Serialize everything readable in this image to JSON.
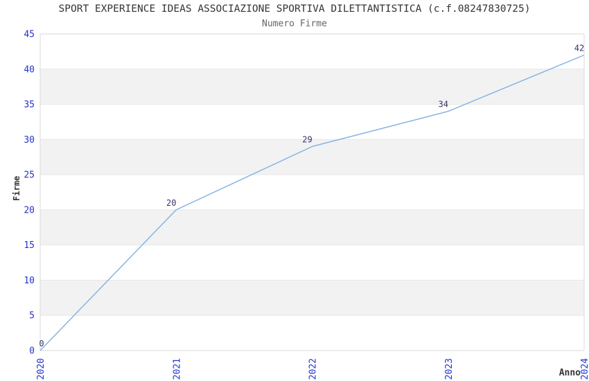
{
  "chart_data": {
    "type": "line",
    "title": "SPORT EXPERIENCE IDEAS ASSOCIAZIONE SPORTIVA DILETTANTISTICA (c.f.08247830725)",
    "subtitle": "Numero Firme",
    "xlabel": "Anno",
    "ylabel": "Firme",
    "categories": [
      "2020",
      "2021",
      "2022",
      "2023",
      "2024"
    ],
    "values": [
      0,
      20,
      29,
      34,
      42
    ],
    "point_labels": [
      "0",
      "20",
      "29",
      "34",
      "42"
    ],
    "ylim": [
      0,
      45
    ],
    "yticks": [
      0,
      5,
      10,
      15,
      20,
      25,
      30,
      35,
      40,
      45
    ],
    "grid": "horizontal alternating bands every 5 units",
    "legend": "none",
    "colors": {
      "line": "#7fb0e3",
      "tick_label": "#2233cc",
      "point_label": "#333366",
      "title": "#333333",
      "subtitle": "#666666",
      "axis_label": "#333333",
      "band_fill": "#f2f2f2",
      "grid_line": "#e6e6e6",
      "border": "#d9d9d9",
      "background": "#ffffff"
    }
  }
}
